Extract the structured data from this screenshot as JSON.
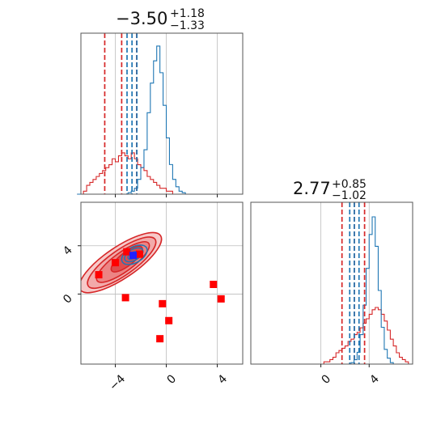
{
  "chart_data": {
    "type": "corner",
    "grid": true,
    "colors": {
      "red": "#d62728",
      "blue": "#1f77b4",
      "marker_blue": "#1f1fff"
    },
    "parameters": [
      {
        "median": -3.5,
        "upper": "+1.18",
        "lower": "−1.33",
        "median_label": "−3.50"
      },
      {
        "median": 2.77,
        "upper": "+0.85",
        "lower": "−1.02",
        "median_label": "2.77"
      }
    ],
    "x_range": [
      -6.7,
      6.0
    ],
    "y_range": [
      -5.8,
      7.6
    ],
    "ticks": {
      "param1": [
        {
          "value": -4,
          "label": "−4"
        },
        {
          "value": 0,
          "label": "0"
        },
        {
          "value": 4,
          "label": "4"
        }
      ],
      "param2": [
        {
          "value": 0,
          "label": "0"
        },
        {
          "value": 4,
          "label": "4"
        }
      ]
    },
    "hist_param1": {
      "bin_edges_start": -7.0,
      "bin_width": 0.25,
      "red_counts": [
        0,
        0,
        1,
        3,
        4,
        5,
        6,
        7,
        8,
        9,
        10,
        12,
        11,
        13,
        14,
        13,
        12,
        14,
        12,
        10,
        9,
        8,
        6,
        5,
        4,
        3,
        2,
        2,
        1,
        1,
        0,
        0,
        0,
        0,
        0,
        0,
        0,
        0,
        0,
        0,
        0,
        0,
        0,
        0,
        0,
        0,
        0,
        0,
        0,
        0,
        0,
        0
      ],
      "blue_counts": [
        0,
        0,
        0,
        0,
        0,
        0,
        0,
        0,
        0,
        0,
        0,
        0,
        0,
        0,
        0,
        0,
        1,
        2,
        4,
        10,
        18,
        30,
        55,
        75,
        90,
        100,
        82,
        60,
        38,
        20,
        10,
        5,
        2,
        1,
        0,
        0,
        0,
        0,
        0,
        0,
        0,
        0,
        0,
        0,
        0,
        0,
        0,
        0,
        0,
        0,
        0,
        0
      ],
      "red_quantiles": [
        -4.83,
        -3.5,
        -2.32
      ],
      "blue_quantiles": [
        -3.08,
        -2.69,
        -2.31
      ]
    },
    "hist_param2": {
      "bin_edges_start": -4.0,
      "bin_width": 0.25,
      "red_counts": [
        0,
        0,
        0,
        0,
        0,
        0,
        0,
        0,
        0,
        0,
        0,
        0,
        0,
        0,
        0,
        0,
        0,
        1,
        1,
        2,
        3,
        5,
        6,
        7,
        8,
        10,
        11,
        13,
        14,
        16,
        18,
        20,
        22,
        24,
        25,
        24,
        22,
        19,
        15,
        11,
        8,
        5,
        3,
        2,
        1,
        0
      ],
      "blue_counts": [
        0,
        0,
        0,
        0,
        0,
        0,
        0,
        0,
        0,
        0,
        0,
        0,
        0,
        0,
        0,
        0,
        0,
        0,
        0,
        0,
        0,
        0,
        0,
        0,
        0,
        0,
        1,
        3,
        8,
        20,
        40,
        65,
        88,
        100,
        80,
        50,
        25,
        10,
        4,
        1,
        0,
        0,
        0,
        0,
        0,
        0
      ],
      "red_quantiles": [
        1.75,
        2.77,
        3.62
      ],
      "blue_quantiles": [
        2.39,
        2.77,
        3.16
      ]
    },
    "scatter_2d": {
      "red_contours": [
        {
          "cx": -3.6,
          "cy": 2.6,
          "rx": 3.8,
          "ry": 1.3,
          "angle": 34,
          "opacity": 1.0
        },
        {
          "cx": -3.5,
          "cy": 2.6,
          "rx": 3.2,
          "ry": 1.05,
          "angle": 35,
          "opacity": 0.8
        },
        {
          "cx": -3.4,
          "cy": 2.65,
          "rx": 2.5,
          "ry": 0.8,
          "angle": 36,
          "opacity": 0.65
        },
        {
          "cx": -3.1,
          "cy": 2.9,
          "rx": 1.5,
          "ry": 0.55,
          "angle": 38,
          "opacity": 0.6
        }
      ],
      "blue_contours": [
        {
          "cx": -2.5,
          "cy": 3.25,
          "rx": 1.1,
          "ry": 0.65,
          "angle": 30
        },
        {
          "cx": -2.55,
          "cy": 3.25,
          "rx": 0.8,
          "ry": 0.45,
          "angle": 30
        },
        {
          "cx": -2.6,
          "cy": 3.2,
          "rx": 0.45,
          "ry": 0.25,
          "angle": 30
        }
      ],
      "red_squares": [
        {
          "x": -5.3,
          "y": 1.6
        },
        {
          "x": -3.1,
          "y": 3.5
        },
        {
          "x": -4.0,
          "y": 2.6
        },
        {
          "x": -2.1,
          "y": 3.3
        },
        {
          "x": -3.2,
          "y": -0.3
        },
        {
          "x": -0.3,
          "y": -0.8
        },
        {
          "x": 0.2,
          "y": -2.2
        },
        {
          "x": -0.5,
          "y": -3.7
        },
        {
          "x": 3.7,
          "y": 0.8
        },
        {
          "x": 4.3,
          "y": -0.4
        }
      ],
      "blue_square": {
        "x": -2.6,
        "y": 3.2
      }
    }
  }
}
